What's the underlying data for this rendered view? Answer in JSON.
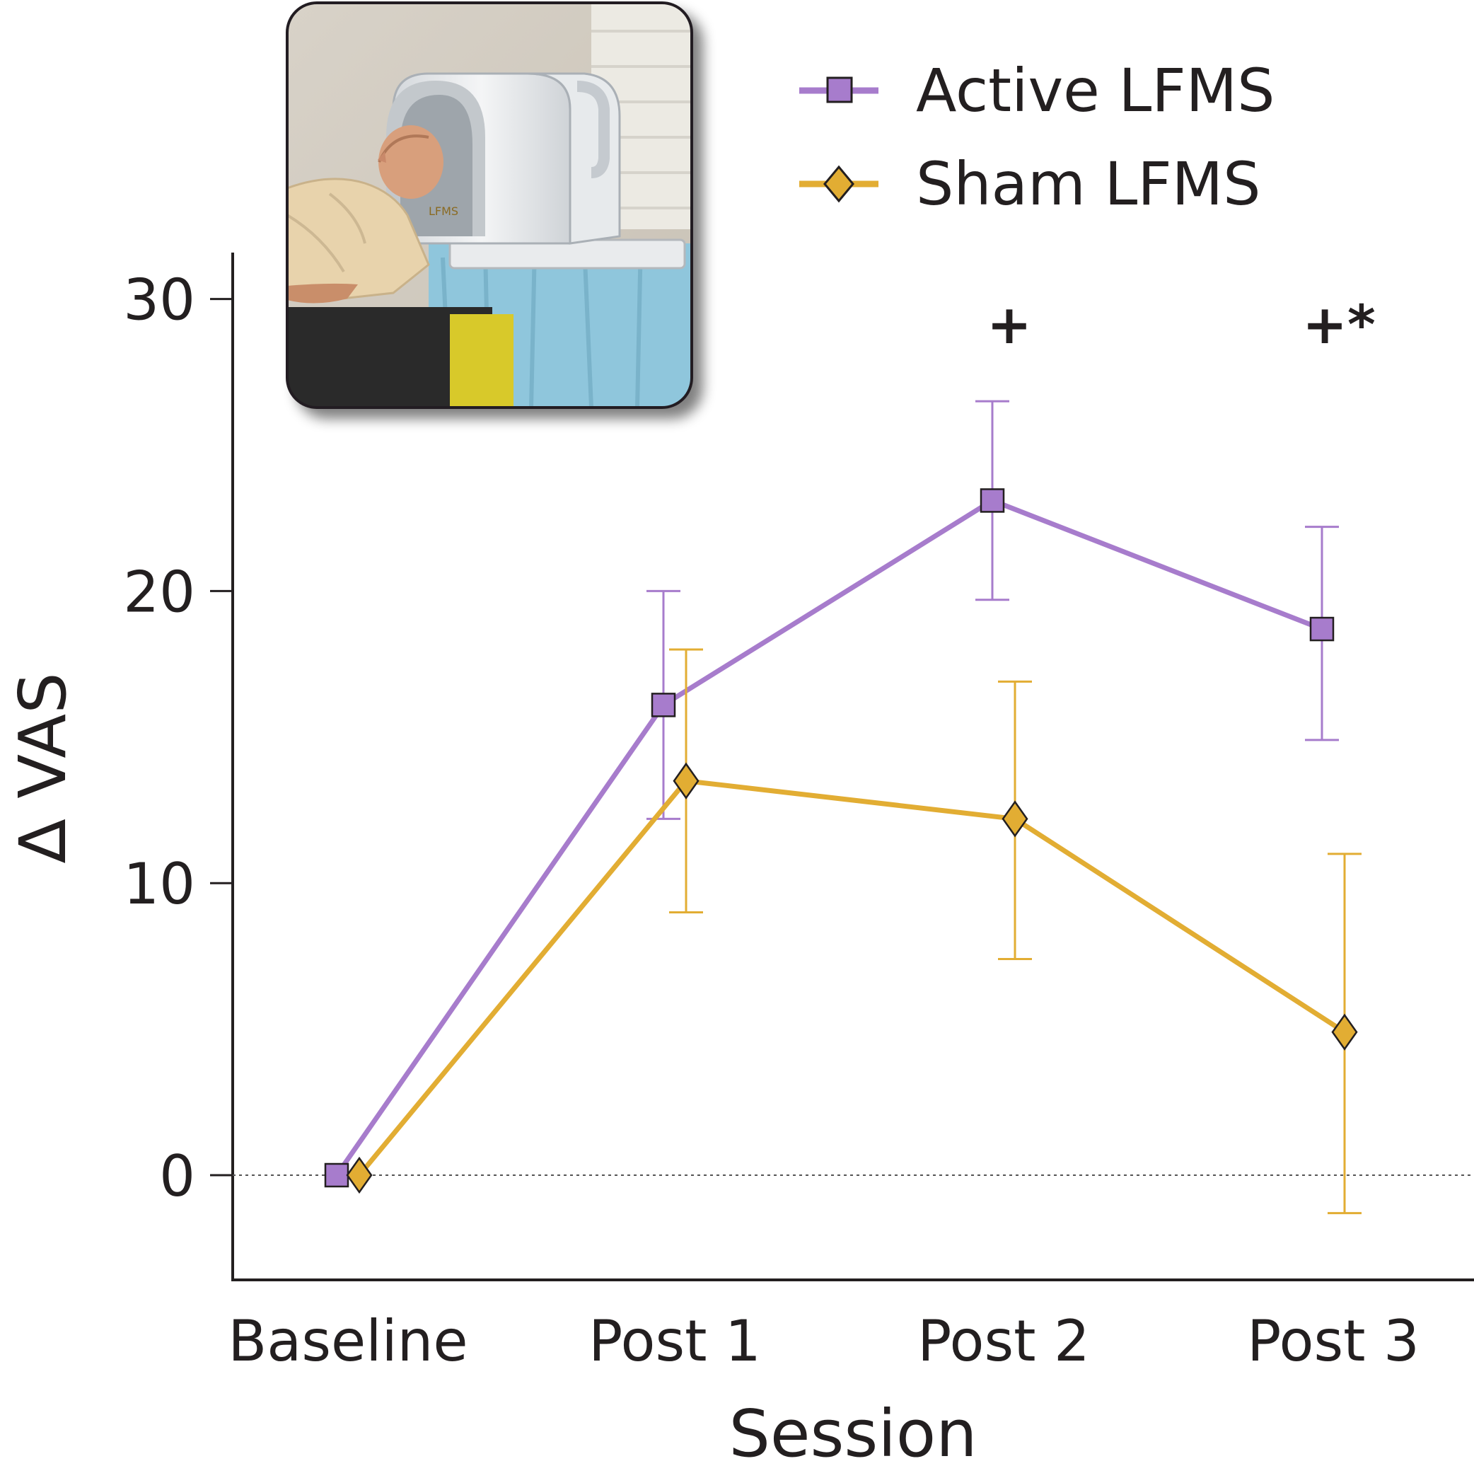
{
  "chart_data": {
    "type": "line",
    "categories": [
      "Baseline",
      "Post 1",
      "Post 2",
      "Post 3"
    ],
    "xlabel": "Session",
    "ylabel": "∆ VAS",
    "ylim": [
      -3.6,
      31.5
    ],
    "yticks": [
      0,
      10,
      20,
      30
    ],
    "grid": false,
    "zero_line": "dotted",
    "legend_position": "top-right",
    "series": [
      {
        "name": "Active LFMS",
        "color": "#a77ccc",
        "marker": "square",
        "values": [
          0,
          16.1,
          23.1,
          18.7
        ],
        "error_upper": [
          0,
          20.0,
          26.5,
          22.2
        ],
        "error_lower": [
          0,
          12.2,
          19.7,
          14.9
        ]
      },
      {
        "name": "Sham LFMS",
        "color": "#e2ad33",
        "marker": "diamond",
        "values": [
          0,
          13.5,
          12.2,
          4.9
        ],
        "error_upper": [
          0,
          18.0,
          16.9,
          11.0
        ],
        "error_lower": [
          0,
          9.0,
          7.4,
          -1.3
        ]
      }
    ],
    "annotations": [
      {
        "category": "Post 2",
        "text": "+"
      },
      {
        "category": "Post 3",
        "text": "+*"
      }
    ],
    "inset_image": "photo-of-person-lying-with-head-in-lfms-device"
  }
}
